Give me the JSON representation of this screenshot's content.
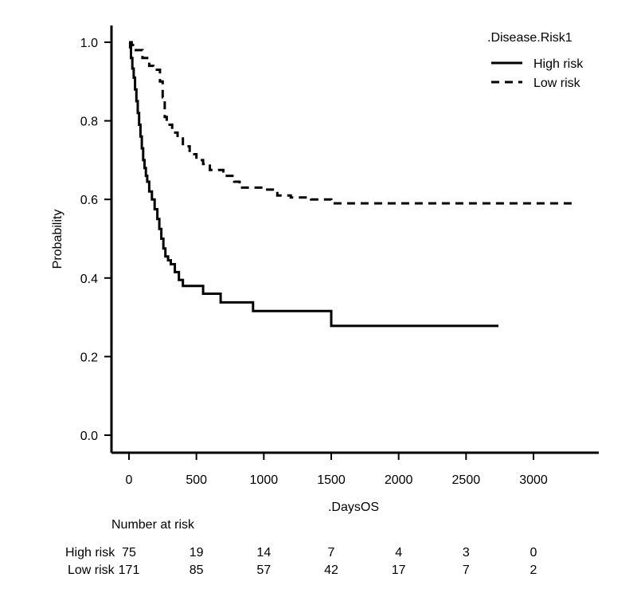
{
  "chart_data": {
    "type": "line",
    "title": "",
    "xlabel": ".DaysOS",
    "ylabel": "Probability",
    "xlim": [
      0,
      3500
    ],
    "ylim": [
      0,
      1
    ],
    "x_ticks": [
      "0",
      "500",
      "1000",
      "1500",
      "2000",
      "2500",
      "3000"
    ],
    "y_ticks": [
      "0.0",
      "0.2",
      "0.4",
      "0.6",
      "0.8",
      "1.0"
    ],
    "grid": false,
    "legend": {
      "title": ".Disease.Risk1",
      "placement": "top-right"
    },
    "series": [
      {
        "name": "High risk",
        "style": "solid",
        "color": "#000000",
        "x": [
          0,
          8,
          15,
          25,
          35,
          45,
          55,
          65,
          75,
          85,
          95,
          105,
          115,
          125,
          135,
          150,
          170,
          190,
          210,
          225,
          240,
          255,
          270,
          290,
          310,
          340,
          370,
          400,
          550,
          680,
          920,
          1500,
          2740
        ],
        "y": [
          1.0,
          0.987,
          0.96,
          0.933,
          0.91,
          0.88,
          0.85,
          0.82,
          0.79,
          0.76,
          0.73,
          0.7,
          0.68,
          0.66,
          0.645,
          0.62,
          0.6,
          0.575,
          0.55,
          0.525,
          0.5,
          0.475,
          0.455,
          0.445,
          0.435,
          0.415,
          0.395,
          0.38,
          0.36,
          0.338,
          0.316,
          0.278,
          0.278
        ]
      },
      {
        "name": "Low risk",
        "style": "dashed",
        "color": "#000000",
        "x": [
          0,
          20,
          50,
          100,
          150,
          180,
          230,
          250,
          265,
          280,
          320,
          360,
          400,
          450,
          500,
          550,
          600,
          700,
          780,
          820,
          1000,
          1100,
          1200,
          1350,
          1500,
          3300
        ],
        "y": [
          1.0,
          0.993,
          0.98,
          0.96,
          0.94,
          0.93,
          0.9,
          0.86,
          0.81,
          0.79,
          0.77,
          0.755,
          0.735,
          0.715,
          0.7,
          0.69,
          0.675,
          0.66,
          0.645,
          0.63,
          0.625,
          0.61,
          0.605,
          0.6,
          0.59,
          0.59
        ]
      }
    ],
    "risk_table": {
      "title": "Number at risk",
      "time_points": [
        0,
        500,
        1000,
        1500,
        2000,
        2500,
        3000
      ],
      "rows": [
        {
          "label": "High risk",
          "values": [
            "75",
            "19",
            "14",
            "7",
            "4",
            "3",
            "0"
          ]
        },
        {
          "label": "Low risk",
          "values": [
            "171",
            "85",
            "57",
            "42",
            "17",
            "7",
            "2"
          ]
        }
      ]
    }
  }
}
